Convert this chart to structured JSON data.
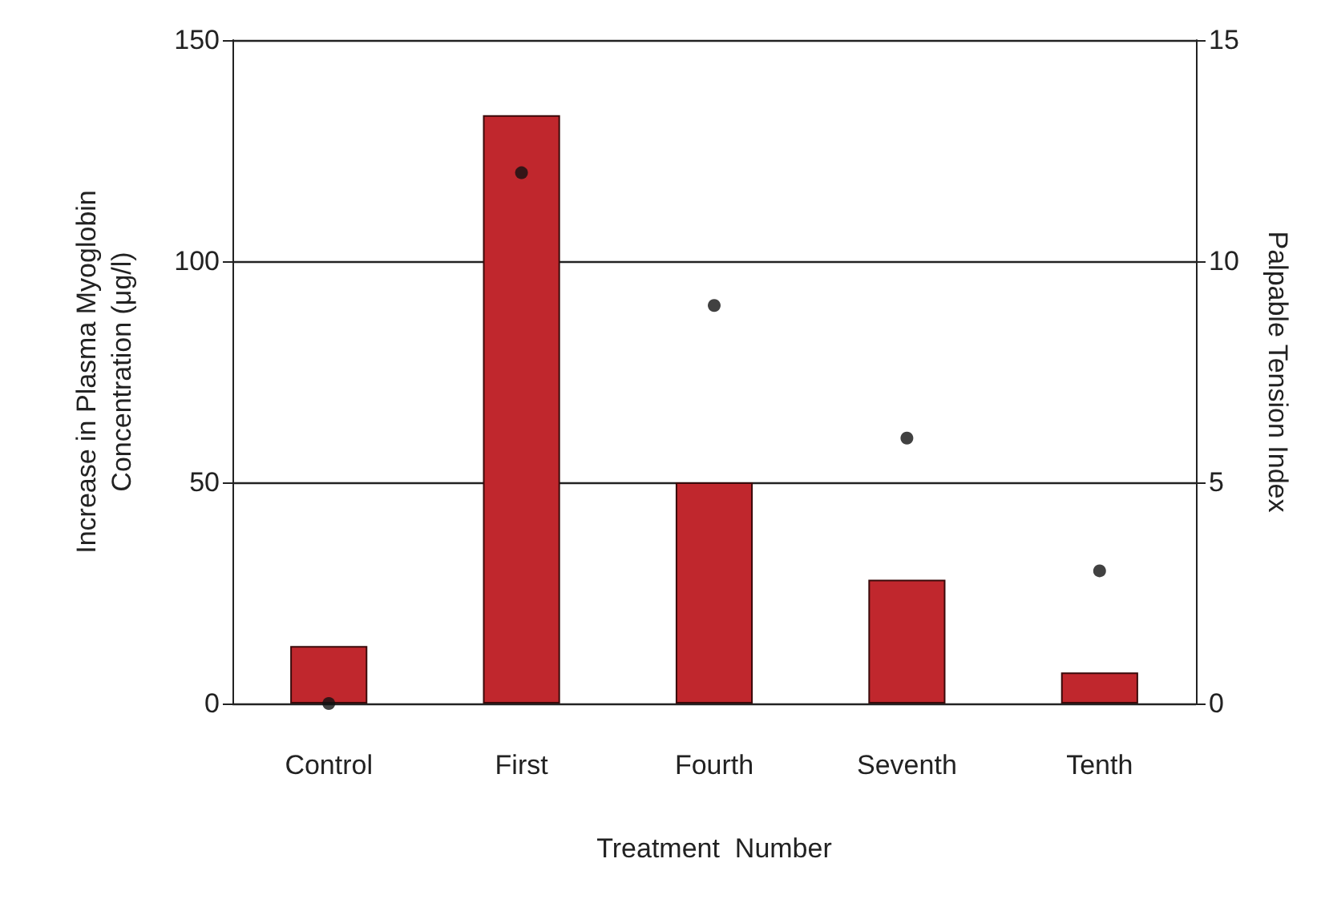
{
  "chart_data": {
    "type": "bar",
    "xlabel": "Treatment  Number",
    "ylabel": "Increase in Plasma Myoglobin\nConcentration (μg/l)",
    "y2label": "Palpable Tension Index",
    "categories": [
      "Control",
      "First",
      "Fourth",
      "Seventh",
      "Tenth"
    ],
    "series": [
      {
        "color": "#c0272d",
        "values": [
          13,
          133,
          50,
          28,
          7
        ]
      },
      {
        "type": "scatter",
        "axis": "y2",
        "color": "#111111",
        "x": [
          "Control",
          "First",
          "Fourth",
          "Seventh",
          "Tenth"
        ],
        "values": [
          0,
          12,
          9,
          6,
          3
        ]
      }
    ],
    "ylim": [
      0,
      150
    ],
    "yticks": [
      0,
      50,
      100,
      150
    ],
    "y2lim": [
      0,
      15
    ],
    "y2ticks": [
      0,
      5,
      10,
      15
    ],
    "grid": "y",
    "marker": "circle"
  }
}
